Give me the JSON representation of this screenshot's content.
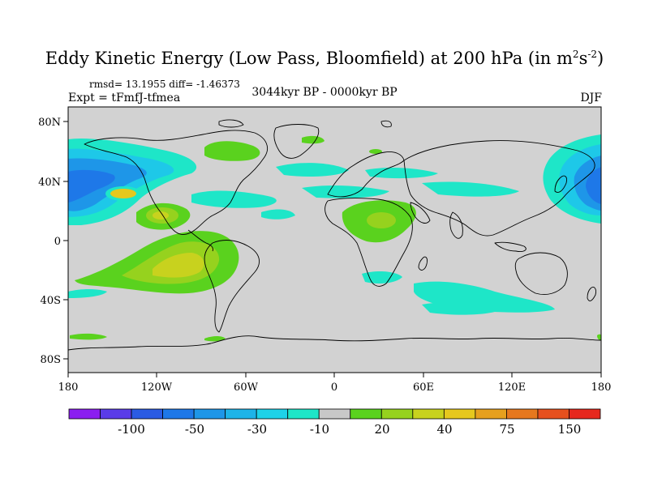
{
  "title": {
    "main": "Eddy Kinetic Energy (Low Pass, Bloomfield) at 200 hPa (in m",
    "sup1": "2",
    "mid": "s",
    "sup2": "-2",
    "close": ")"
  },
  "stats_text": "rmsd= 13.1955 diff= -1.46373",
  "expt_text": "Expt = tFmfJ-tfmea",
  "period_text": "3044kyr BP - 0000kyr BP",
  "season_text": "DJF",
  "axes": {
    "lat_ticks": [
      "80N",
      "40N",
      "0",
      "40S",
      "80S"
    ],
    "lon_ticks": [
      "180",
      "120W",
      "60W",
      "0",
      "60E",
      "120E",
      "180"
    ]
  },
  "colorbar": {
    "colors": [
      "#8b1ef0",
      "#5a3ce8",
      "#2a5be3",
      "#1e78e8",
      "#1e96e8",
      "#1eb4e8",
      "#1ed2e8",
      "#1ee6c8",
      "#c8c8c8",
      "#5ad21e",
      "#96d21e",
      "#c8d21e",
      "#e6c81e",
      "#e6a01e",
      "#e6781e",
      "#e6501e",
      "#e6281e"
    ],
    "labels": [
      "-100",
      "-50",
      "-30",
      "-10",
      "20",
      "40",
      "75",
      "150"
    ]
  },
  "map_colors": {
    "background": "#d2d2d2",
    "cyan": "#1ee6c8",
    "light_blue": "#1ec8e8",
    "blue": "#1e96e8",
    "deep_blue": "#1e78e8",
    "green": "#5ad21e",
    "yellow_green": "#96d21e",
    "yellow": "#c8d21e",
    "gold": "#e6c81e"
  }
}
